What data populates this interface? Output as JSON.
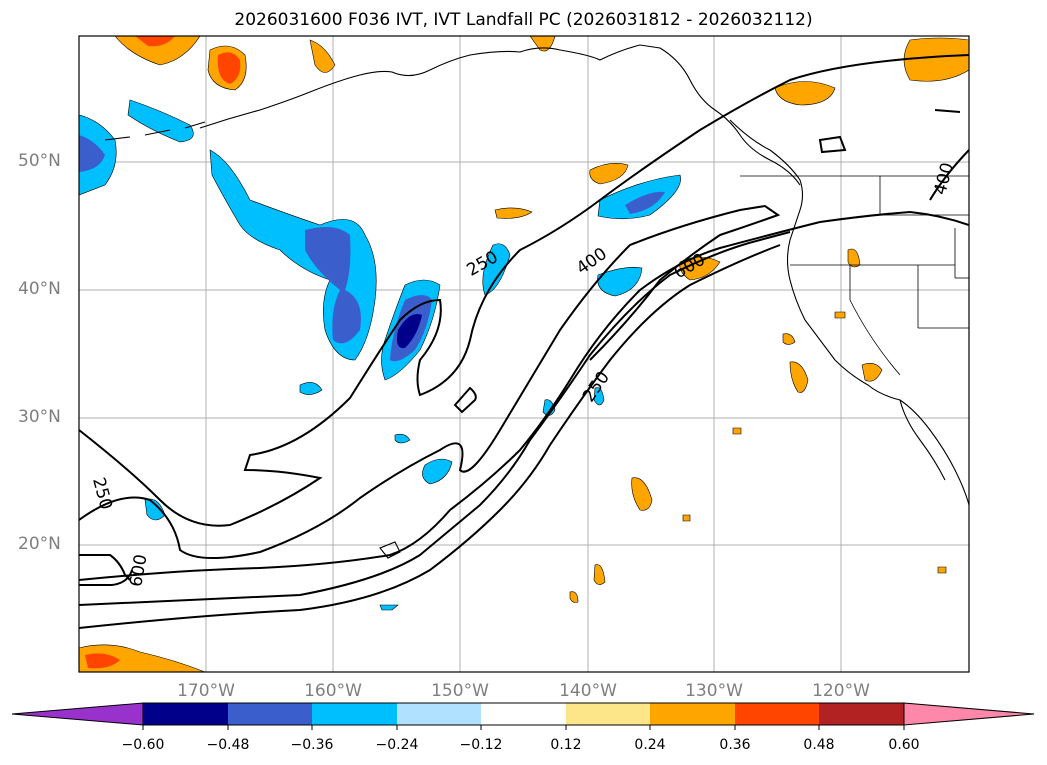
{
  "title": "2026031600 F036 IVT, IVT Landfall PC (2026031812 - 2026032112)",
  "lat_labels": [
    "50°N",
    "40°N",
    "30°N",
    "20°N"
  ],
  "lon_labels": [
    "170°W",
    "160°W",
    "150°W",
    "140°W",
    "130°W",
    "120°W"
  ],
  "contour_labels": [
    "250",
    "400",
    "600",
    "250",
    "250",
    "600",
    "400"
  ],
  "colorbar": {
    "ticks": [
      "−0.60",
      "−0.48",
      "−0.36",
      "−0.24",
      "−0.12",
      "0.12",
      "0.24",
      "0.36",
      "0.48",
      "0.60"
    ],
    "colors": [
      "#9932cc",
      "#00008b",
      "#3a5fcd",
      "#00bfff",
      "#b0e2ff",
      "#ffffff",
      "#fde68a",
      "#ffa500",
      "#ff4500",
      "#b22222",
      "#ff88aa"
    ]
  }
}
